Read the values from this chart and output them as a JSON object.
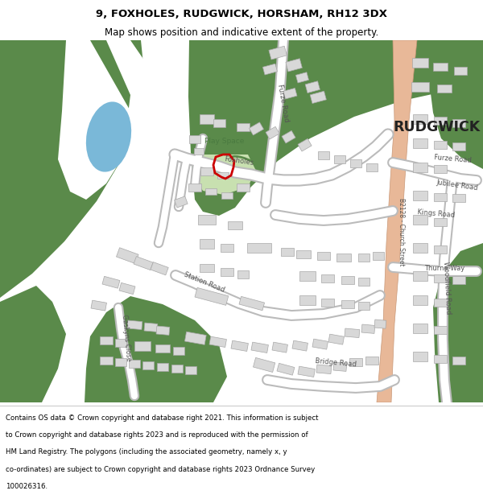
{
  "title_line1": "9, FOXHOLES, RUDGWICK, HORSHAM, RH12 3DX",
  "title_line2": "Map shows position and indicative extent of the property.",
  "footer_lines": [
    "Contains OS data © Crown copyright and database right 2021. This information is subject",
    "to Crown copyright and database rights 2023 and is reproduced with the permission of",
    "HM Land Registry. The polygons (including the associated geometry, namely x, y",
    "co-ordinates) are subject to Crown copyright and database rights 2023 Ordnance Survey",
    "100026316."
  ],
  "bg_color": "#ffffff",
  "map_bg": "#ffffff",
  "green_dark": "#5a8a4a",
  "blue_water": "#7ab8d8",
  "road_main": "#e8b898",
  "road_outline": "#c89878",
  "building_fill": "#d8d8d8",
  "building_stroke": "#a8a8a8",
  "red_plot": "#cc0000",
  "text_color": "#000000",
  "label_color": "#555555",
  "play_space_color": "#c8e0b0"
}
